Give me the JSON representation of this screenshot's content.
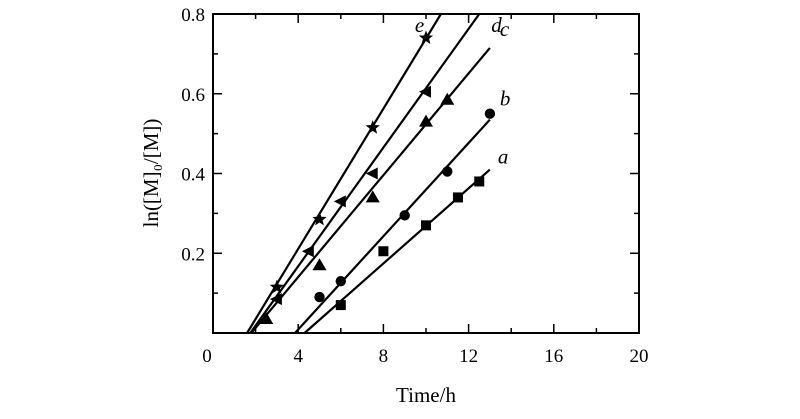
{
  "chart_data": {
    "type": "scatter",
    "xlabel": "Time/h",
    "ylabel": "ln([M]₀/[M])",
    "xlim": [
      0,
      20
    ],
    "ylim": [
      0,
      0.8
    ],
    "x_ticks": [
      "0",
      "4",
      "8",
      "12",
      "16",
      "20"
    ],
    "y_ticks": [
      "0.2",
      "0.4",
      "0.6",
      "0.8"
    ],
    "grid": false,
    "series": [
      {
        "name": "a",
        "marker": "square",
        "x": [
          6,
          8,
          10,
          11.5,
          12.5
        ],
        "y": [
          0.07,
          0.205,
          0.27,
          0.34,
          0.38
        ],
        "fit": {
          "x": [
            4.3,
            13.0
          ],
          "y": [
            0.0,
            0.41
          ]
        }
      },
      {
        "name": "b",
        "marker": "circle",
        "x": [
          5,
          6,
          9,
          11,
          13
        ],
        "y": [
          0.09,
          0.13,
          0.295,
          0.405,
          0.55
        ],
        "fit": {
          "x": [
            3.85,
            13.0
          ],
          "y": [
            0.0,
            0.535
          ]
        }
      },
      {
        "name": "c",
        "marker": "triangle-up",
        "x": [
          2.5,
          5,
          7.5,
          10,
          11
        ],
        "y": [
          0.035,
          0.17,
          0.34,
          0.53,
          0.585
        ],
        "fit": {
          "x": [
            1.8,
            13.0
          ],
          "y": [
            0.0,
            0.715
          ]
        }
      },
      {
        "name": "d",
        "marker": "triangle-left",
        "x": [
          3,
          4.5,
          6,
          7.5,
          10
        ],
        "y": [
          0.085,
          0.205,
          0.33,
          0.4,
          0.605
        ],
        "fit": {
          "x": [
            1.75,
            12.5
          ],
          "y": [
            0.0,
            0.8
          ]
        }
      },
      {
        "name": "e",
        "marker": "star",
        "x": [
          3,
          5,
          7.5,
          10
        ],
        "y": [
          0.115,
          0.285,
          0.515,
          0.74
        ],
        "fit": {
          "x": [
            1.6,
            10.7
          ],
          "y": [
            0.0,
            0.8
          ]
        }
      }
    ]
  }
}
